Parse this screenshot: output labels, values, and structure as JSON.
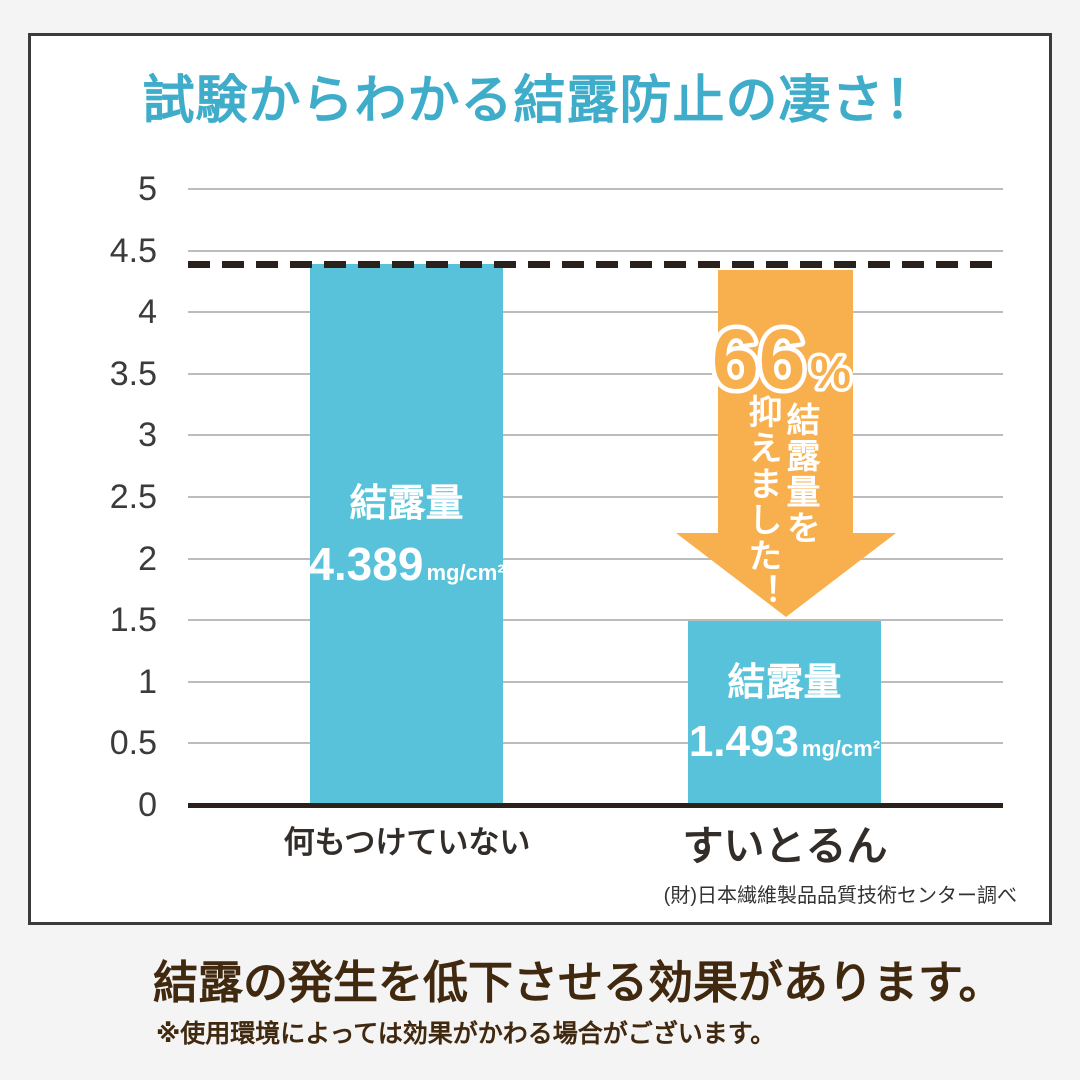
{
  "title": {
    "text": "試験からわかる結露防止の凄さ！",
    "color": "#3fadc9"
  },
  "chart_data": {
    "type": "bar",
    "title": "試験からわかる結露防止の凄さ！",
    "categories": [
      "何もつけていない",
      "すいとるん"
    ],
    "values": [
      4.389,
      1.493
    ],
    "bar_labels": [
      {
        "label": "結露量",
        "value": "4.389",
        "unit": "mg/cm²"
      },
      {
        "label": "結露量",
        "value": "1.493",
        "unit": "mg/cm²"
      }
    ],
    "yticks": [
      5,
      4.5,
      4,
      3.5,
      3,
      2.5,
      2,
      1.5,
      1,
      0.5,
      0
    ],
    "ylim": [
      0,
      5
    ],
    "xlabel": "",
    "ylabel": "",
    "grid": true,
    "bar_color": "#58c2da",
    "reference_line": {
      "value": 4.389,
      "style": "dashed",
      "color": "#2b211c"
    },
    "annotation": {
      "percent": "66",
      "percent_sign": "%",
      "line1": "結露量を",
      "line2": "抑えました！",
      "full_text": "66% 結露量を抑えました！",
      "arrow_color": "#f8af4e",
      "text_color": "#ffffff"
    }
  },
  "attribution": "(財)日本繊維製品品質技術センター調べ",
  "footer": {
    "headline": "結露の発生を低下させる効果があります。",
    "note": "※使用環境によっては効果がかわる場合がございます。",
    "text_color": "#40290f"
  },
  "colors": {
    "page_bg": "#f4f4f5",
    "card_bg": "#ffffff",
    "card_border": "#3b3b3b",
    "gridline": "#bcbcbc",
    "axis_line": "#2b211c",
    "tick_text": "#3b3b3b",
    "category_text": "#332d29"
  }
}
